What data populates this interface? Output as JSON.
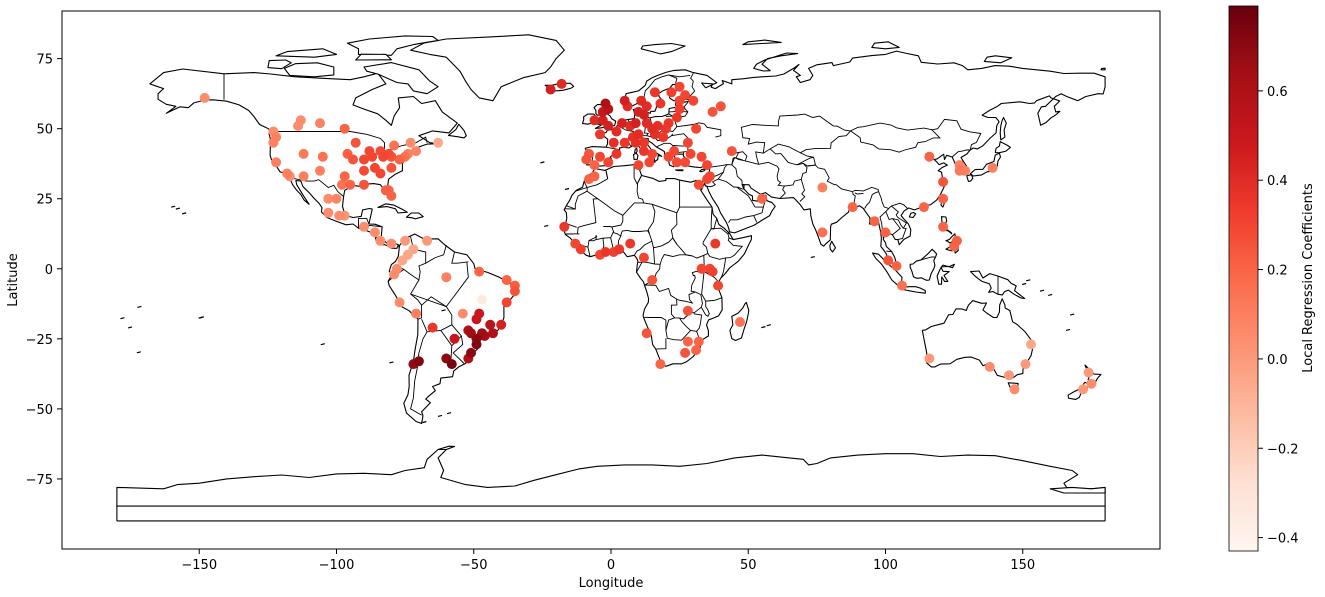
{
  "chart_data": {
    "type": "scatter",
    "xlabel": "Longitude",
    "ylabel": "Latitude",
    "xlim": [
      -200,
      200
    ],
    "ylim": [
      -100,
      92
    ],
    "xticks": [
      -150,
      -100,
      -50,
      0,
      50,
      100,
      150
    ],
    "yticks": [
      -75,
      -50,
      -25,
      0,
      25,
      50,
      75
    ],
    "xtick_labels": [
      "−150",
      "−100",
      "−50",
      "0",
      "50",
      "100",
      "150"
    ],
    "ytick_labels": [
      "−75",
      "−50",
      "−25",
      "0",
      "25",
      "50",
      "75"
    ],
    "grid": false,
    "colorbar": {
      "label": "Local Regression Coefficients",
      "colormap": "Reds",
      "range": [
        -0.43,
        0.79
      ],
      "ticks": [
        -0.4,
        -0.2,
        0.0,
        0.2,
        0.4,
        0.6
      ],
      "tick_labels": [
        "−0.4",
        "−0.2",
        "0.0",
        "0.2",
        "0.4",
        "0.6"
      ]
    },
    "points": [
      {
        "lon": -148,
        "lat": 61,
        "v": 0.05
      },
      {
        "lon": -123,
        "lat": 49,
        "v": 0.05
      },
      {
        "lon": -122,
        "lat": 47,
        "v": 0.1
      },
      {
        "lon": -123,
        "lat": 45,
        "v": 0.08
      },
      {
        "lon": -122,
        "lat": 38,
        "v": 0.1
      },
      {
        "lon": -118,
        "lat": 34,
        "v": 0.1
      },
      {
        "lon": -117,
        "lat": 33,
        "v": 0.05
      },
      {
        "lon": -112,
        "lat": 33,
        "v": 0.1
      },
      {
        "lon": -112,
        "lat": 41,
        "v": 0.12
      },
      {
        "lon": -105,
        "lat": 40,
        "v": 0.15
      },
      {
        "lon": -106,
        "lat": 35,
        "v": 0.1
      },
      {
        "lon": -114,
        "lat": 51,
        "v": 0.05
      },
      {
        "lon": -113,
        "lat": 53,
        "v": 0.05
      },
      {
        "lon": -106,
        "lat": 52,
        "v": 0.08
      },
      {
        "lon": -97,
        "lat": 50,
        "v": 0.2
      },
      {
        "lon": -97,
        "lat": 33,
        "v": 0.2
      },
      {
        "lon": -95,
        "lat": 30,
        "v": 0.2
      },
      {
        "lon": -98,
        "lat": 30,
        "v": 0.15
      },
      {
        "lon": -90,
        "lat": 30,
        "v": 0.25
      },
      {
        "lon": -94,
        "lat": 39,
        "v": 0.25
      },
      {
        "lon": -90,
        "lat": 39,
        "v": 0.3
      },
      {
        "lon": -88,
        "lat": 42,
        "v": 0.3
      },
      {
        "lon": -87,
        "lat": 40,
        "v": 0.3
      },
      {
        "lon": -84,
        "lat": 42,
        "v": 0.28
      },
      {
        "lon": -83,
        "lat": 40,
        "v": 0.3
      },
      {
        "lon": -81,
        "lat": 41,
        "v": 0.28
      },
      {
        "lon": -80,
        "lat": 40,
        "v": 0.25
      },
      {
        "lon": -86,
        "lat": 36,
        "v": 0.3
      },
      {
        "lon": -84,
        "lat": 34,
        "v": 0.3
      },
      {
        "lon": -80,
        "lat": 36,
        "v": 0.25
      },
      {
        "lon": -77,
        "lat": 39,
        "v": 0.2
      },
      {
        "lon": -75,
        "lat": 40,
        "v": 0.15
      },
      {
        "lon": -74,
        "lat": 41,
        "v": 0.1
      },
      {
        "lon": -71,
        "lat": 42,
        "v": 0.08
      },
      {
        "lon": -73,
        "lat": 45,
        "v": 0.05
      },
      {
        "lon": -79,
        "lat": 44,
        "v": 0.15
      },
      {
        "lon": -81,
        "lat": 28,
        "v": 0.2
      },
      {
        "lon": -82,
        "lat": 28,
        "v": 0.22
      },
      {
        "lon": -80,
        "lat": 26,
        "v": 0.2
      },
      {
        "lon": -63,
        "lat": 45,
        "v": -0.05
      },
      {
        "lon": -93,
        "lat": 45,
        "v": 0.25
      },
      {
        "lon": -96,
        "lat": 41,
        "v": 0.22
      },
      {
        "lon": -90,
        "lat": 35,
        "v": 0.28
      },
      {
        "lon": -103,
        "lat": 25,
        "v": 0.05
      },
      {
        "lon": -100,
        "lat": 25,
        "v": 0.08
      },
      {
        "lon": -103,
        "lat": 20,
        "v": 0.05
      },
      {
        "lon": -99,
        "lat": 19,
        "v": 0.05
      },
      {
        "lon": -97,
        "lat": 19,
        "v": 0.02
      },
      {
        "lon": -90,
        "lat": 15,
        "v": 0.05
      },
      {
        "lon": -86,
        "lat": 13,
        "v": 0.05
      },
      {
        "lon": -84,
        "lat": 10,
        "v": 0.05
      },
      {
        "lon": -80,
        "lat": 9,
        "v": 0.05
      },
      {
        "lon": -75,
        "lat": 10,
        "v": 0.0
      },
      {
        "lon": -74,
        "lat": 5,
        "v": -0.05
      },
      {
        "lon": -76,
        "lat": 3,
        "v": -0.05
      },
      {
        "lon": -72,
        "lat": 7,
        "v": -0.05
      },
      {
        "lon": -67,
        "lat": 10,
        "v": 0.0
      },
      {
        "lon": -78,
        "lat": 0,
        "v": 0.05
      },
      {
        "lon": -79,
        "lat": -2,
        "v": 0.05
      },
      {
        "lon": -77,
        "lat": -12,
        "v": 0.05
      },
      {
        "lon": -71,
        "lat": -16,
        "v": 0.1
      },
      {
        "lon": -70,
        "lat": -33,
        "v": 0.72
      },
      {
        "lon": -72,
        "lat": -34,
        "v": 0.68
      },
      {
        "lon": -65,
        "lat": -21,
        "v": 0.35
      },
      {
        "lon": -58,
        "lat": -34,
        "v": 0.75
      },
      {
        "lon": -60,
        "lat": -32,
        "v": 0.7
      },
      {
        "lon": -57,
        "lat": -25,
        "v": 0.5
      },
      {
        "lon": -52,
        "lat": -32,
        "v": 0.6
      },
      {
        "lon": -51,
        "lat": -30,
        "v": 0.7
      },
      {
        "lon": -49,
        "lat": -27,
        "v": 0.72
      },
      {
        "lon": -49,
        "lat": -25,
        "v": 0.7
      },
      {
        "lon": -47,
        "lat": -23,
        "v": 0.65
      },
      {
        "lon": -46,
        "lat": -24,
        "v": 0.62
      },
      {
        "lon": -43,
        "lat": -23,
        "v": 0.6
      },
      {
        "lon": -44,
        "lat": -20,
        "v": 0.55
      },
      {
        "lon": -48,
        "lat": -16,
        "v": 0.5
      },
      {
        "lon": -49,
        "lat": -18,
        "v": 0.5
      },
      {
        "lon": -40,
        "lat": -20,
        "v": 0.45
      },
      {
        "lon": -52,
        "lat": -22,
        "v": 0.6
      },
      {
        "lon": -51,
        "lat": -23,
        "v": 0.65
      },
      {
        "lon": -38,
        "lat": -12,
        "v": 0.3
      },
      {
        "lon": -35,
        "lat": -8,
        "v": 0.25
      },
      {
        "lon": -38,
        "lat": -4,
        "v": 0.2
      },
      {
        "lon": -35,
        "lat": -6,
        "v": 0.22
      },
      {
        "lon": -48,
        "lat": -1,
        "v": 0.2
      },
      {
        "lon": -60,
        "lat": -3,
        "v": 0.1
      },
      {
        "lon": -47,
        "lat": -11,
        "v": -0.35
      },
      {
        "lon": -54,
        "lat": -16,
        "v": 0.05
      },
      {
        "lon": -9,
        "lat": 39,
        "v": 0.25
      },
      {
        "lon": -8,
        "lat": 41,
        "v": 0.25
      },
      {
        "lon": -6,
        "lat": 37,
        "v": 0.2
      },
      {
        "lon": -4,
        "lat": 40,
        "v": 0.3
      },
      {
        "lon": -1,
        "lat": 38,
        "v": 0.3
      },
      {
        "lon": 2,
        "lat": 41,
        "v": 0.35
      },
      {
        "lon": -6,
        "lat": 33,
        "v": 0.2
      },
      {
        "lon": -8,
        "lat": 32,
        "v": 0.2
      },
      {
        "lon": -4,
        "lat": 48,
        "v": 0.35
      },
      {
        "lon": 2,
        "lat": 49,
        "v": 0.4
      },
      {
        "lon": 5,
        "lat": 45,
        "v": 0.35
      },
      {
        "lon": 1,
        "lat": 45,
        "v": 0.38
      },
      {
        "lon": -3,
        "lat": 53,
        "v": 0.45
      },
      {
        "lon": -1,
        "lat": 51,
        "v": 0.45
      },
      {
        "lon": -3,
        "lat": 56,
        "v": 0.5
      },
      {
        "lon": -6,
        "lat": 53,
        "v": 0.4
      },
      {
        "lon": -2,
        "lat": 59,
        "v": 0.6
      },
      {
        "lon": -1,
        "lat": 57,
        "v": 0.55
      },
      {
        "lon": 4,
        "lat": 52,
        "v": 0.45
      },
      {
        "lon": 7,
        "lat": 51,
        "v": 0.4
      },
      {
        "lon": 9,
        "lat": 52,
        "v": 0.45
      },
      {
        "lon": 10,
        "lat": 48,
        "v": 0.4
      },
      {
        "lon": 13,
        "lat": 52,
        "v": 0.4
      },
      {
        "lon": 8,
        "lat": 47,
        "v": 0.38
      },
      {
        "lon": 12,
        "lat": 45,
        "v": 0.35
      },
      {
        "lon": 12,
        "lat": 42,
        "v": 0.35
      },
      {
        "lon": 15,
        "lat": 41,
        "v": 0.3
      },
      {
        "lon": 9,
        "lat": 45,
        "v": 0.38
      },
      {
        "lon": 14,
        "lat": 38,
        "v": 0.3
      },
      {
        "lon": 16,
        "lat": 48,
        "v": 0.38
      },
      {
        "lon": 19,
        "lat": 47,
        "v": 0.35
      },
      {
        "lon": 21,
        "lat": 52,
        "v": 0.35
      },
      {
        "lon": 24,
        "lat": 54,
        "v": 0.35
      },
      {
        "lon": 17,
        "lat": 51,
        "v": 0.38
      },
      {
        "lon": 10,
        "lat": 56,
        "v": 0.45
      },
      {
        "lon": 12,
        "lat": 55,
        "v": 0.45
      },
      {
        "lon": 11,
        "lat": 60,
        "v": 0.4
      },
      {
        "lon": 5,
        "lat": 60,
        "v": 0.45
      },
      {
        "lon": 6,
        "lat": 58,
        "v": 0.4
      },
      {
        "lon": 18,
        "lat": 59,
        "v": 0.35
      },
      {
        "lon": 16,
        "lat": 63,
        "v": 0.35
      },
      {
        "lon": 13,
        "lat": 58,
        "v": 0.4
      },
      {
        "lon": 25,
        "lat": 60,
        "v": 0.3
      },
      {
        "lon": 25,
        "lat": 65,
        "v": 0.3
      },
      {
        "lon": 22,
        "lat": 63,
        "v": 0.32
      },
      {
        "lon": 30,
        "lat": 60,
        "v": 0.3
      },
      {
        "lon": 27,
        "lat": 62,
        "v": 0.3
      },
      {
        "lon": 25,
        "lat": 57,
        "v": 0.32
      },
      {
        "lon": 37,
        "lat": 56,
        "v": 0.25
      },
      {
        "lon": 31,
        "lat": 50,
        "v": 0.3
      },
      {
        "lon": 28,
        "lat": 45,
        "v": 0.3
      },
      {
        "lon": 23,
        "lat": 42,
        "v": 0.3
      },
      {
        "lon": 24,
        "lat": 38,
        "v": 0.28
      },
      {
        "lon": 21,
        "lat": 40,
        "v": 0.3
      },
      {
        "lon": 27,
        "lat": 38,
        "v": 0.28
      },
      {
        "lon": 29,
        "lat": 41,
        "v": 0.3
      },
      {
        "lon": 33,
        "lat": 40,
        "v": 0.3
      },
      {
        "lon": 35,
        "lat": 37,
        "v": 0.3
      },
      {
        "lon": 35,
        "lat": 32,
        "v": 0.3
      },
      {
        "lon": 32,
        "lat": 30,
        "v": 0.28
      },
      {
        "lon": 36,
        "lat": 33,
        "v": 0.3
      },
      {
        "lon": 10,
        "lat": 37,
        "v": 0.3
      },
      {
        "lon": 44,
        "lat": 42,
        "v": 0.25
      },
      {
        "lon": 40,
        "lat": 58,
        "v": 0.25
      },
      {
        "lon": 20,
        "lat": 50,
        "v": 0.35
      },
      {
        "lon": 15,
        "lat": 50,
        "v": 0.4
      },
      {
        "lon": -22,
        "lat": 64,
        "v": 0.45
      },
      {
        "lon": -18,
        "lat": 66,
        "v": 0.4
      },
      {
        "lon": -17,
        "lat": 15,
        "v": 0.35
      },
      {
        "lon": -13,
        "lat": 9,
        "v": 0.3
      },
      {
        "lon": -11,
        "lat": 7,
        "v": 0.32
      },
      {
        "lon": -2,
        "lat": 6,
        "v": 0.35
      },
      {
        "lon": -4,
        "lat": 5,
        "v": 0.3
      },
      {
        "lon": 1,
        "lat": 6,
        "v": 0.32
      },
      {
        "lon": 3,
        "lat": 7,
        "v": 0.35
      },
      {
        "lon": 7,
        "lat": 9,
        "v": 0.35
      },
      {
        "lon": 12,
        "lat": 4,
        "v": 0.3
      },
      {
        "lon": 15,
        "lat": -4,
        "v": 0.25
      },
      {
        "lon": 38,
        "lat": 9,
        "v": 0.35
      },
      {
        "lon": 36,
        "lat": 0,
        "v": 0.3
      },
      {
        "lon": 33,
        "lat": 0,
        "v": 0.3
      },
      {
        "lon": 37,
        "lat": -1,
        "v": 0.32
      },
      {
        "lon": 39,
        "lat": -6,
        "v": 0.3
      },
      {
        "lon": 28,
        "lat": -15,
        "v": 0.25
      },
      {
        "lon": 32,
        "lat": -26,
        "v": 0.2
      },
      {
        "lon": 31,
        "lat": -29,
        "v": 0.2
      },
      {
        "lon": 28,
        "lat": -26,
        "v": 0.2
      },
      {
        "lon": 27,
        "lat": -30,
        "v": 0.25
      },
      {
        "lon": 18,
        "lat": -34,
        "v": 0.2
      },
      {
        "lon": 47,
        "lat": -19,
        "v": 0.15
      },
      {
        "lon": 13,
        "lat": -23,
        "v": 0.25
      },
      {
        "lon": 55,
        "lat": 25,
        "v": 0.2
      },
      {
        "lon": 77,
        "lat": 29,
        "v": 0.1
      },
      {
        "lon": 77,
        "lat": 13,
        "v": 0.15
      },
      {
        "lon": 88,
        "lat": 22,
        "v": 0.2
      },
      {
        "lon": 96,
        "lat": 17,
        "v": 0.2
      },
      {
        "lon": 100,
        "lat": 13,
        "v": 0.2
      },
      {
        "lon": 104,
        "lat": 1,
        "v": 0.2
      },
      {
        "lon": 101,
        "lat": 3,
        "v": 0.25
      },
      {
        "lon": 106,
        "lat": -6,
        "v": 0.15
      },
      {
        "lon": 114,
        "lat": 22,
        "v": 0.2
      },
      {
        "lon": 121,
        "lat": 31,
        "v": 0.25
      },
      {
        "lon": 121,
        "lat": 25,
        "v": 0.2
      },
      {
        "lon": 116,
        "lat": 40,
        "v": 0.2
      },
      {
        "lon": 121,
        "lat": 15,
        "v": 0.2
      },
      {
        "lon": 125,
        "lat": 8,
        "v": 0.2
      },
      {
        "lon": 126,
        "lat": 10,
        "v": 0.22
      },
      {
        "lon": 127,
        "lat": 37,
        "v": 0.1
      },
      {
        "lon": 129,
        "lat": 35,
        "v": 0.1
      },
      {
        "lon": 127,
        "lat": 35,
        "v": 0.12
      },
      {
        "lon": 139,
        "lat": 36,
        "v": 0.1
      },
      {
        "lon": 116,
        "lat": -32,
        "v": 0.0
      },
      {
        "lon": 145,
        "lat": -38,
        "v": 0.0
      },
      {
        "lon": 151,
        "lat": -34,
        "v": 0.0
      },
      {
        "lon": 153,
        "lat": -27,
        "v": -0.05
      },
      {
        "lon": 147,
        "lat": -43,
        "v": 0.05
      },
      {
        "lon": 138,
        "lat": -35,
        "v": 0.05
      },
      {
        "lon": 174,
        "lat": -37,
        "v": 0.0
      },
      {
        "lon": 175,
        "lat": -41,
        "v": 0.05
      },
      {
        "lon": 172,
        "lat": -43,
        "v": 0.0
      }
    ]
  }
}
